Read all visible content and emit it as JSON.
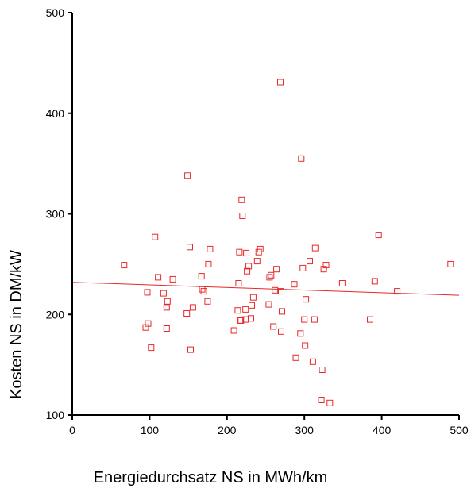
{
  "chart_data": {
    "type": "scatter",
    "title": "",
    "xlabel": "Energiedurchsatz NS in MWh/km",
    "ylabel": "Kosten NS in DM/kW",
    "xlim": [
      0,
      500
    ],
    "ylim": [
      100,
      500
    ],
    "xticks": [
      "0",
      "100",
      "200",
      "300",
      "400",
      "500"
    ],
    "yticks": [
      "100",
      "200",
      "300",
      "400",
      "500"
    ],
    "grid": false,
    "legend": "none",
    "marker": "open-square",
    "colors": {
      "points": "#e8282a",
      "fit_line": "#e8282a",
      "axes": "#000000",
      "background": "#ffffff"
    },
    "fit_line": {
      "x": [
        0,
        500
      ],
      "y": [
        232,
        219
      ]
    },
    "points": [
      {
        "x": 67,
        "y": 249
      },
      {
        "x": 95,
        "y": 187
      },
      {
        "x": 97,
        "y": 222
      },
      {
        "x": 98,
        "y": 191
      },
      {
        "x": 102,
        "y": 167
      },
      {
        "x": 107,
        "y": 277
      },
      {
        "x": 111,
        "y": 237
      },
      {
        "x": 118,
        "y": 221
      },
      {
        "x": 122,
        "y": 186
      },
      {
        "x": 122,
        "y": 207
      },
      {
        "x": 123,
        "y": 213
      },
      {
        "x": 130,
        "y": 235
      },
      {
        "x": 148,
        "y": 201
      },
      {
        "x": 149,
        "y": 338
      },
      {
        "x": 152,
        "y": 267
      },
      {
        "x": 153,
        "y": 165
      },
      {
        "x": 156,
        "y": 207
      },
      {
        "x": 167,
        "y": 238
      },
      {
        "x": 168,
        "y": 225
      },
      {
        "x": 170,
        "y": 223
      },
      {
        "x": 175,
        "y": 213
      },
      {
        "x": 176,
        "y": 250
      },
      {
        "x": 178,
        "y": 265
      },
      {
        "x": 209,
        "y": 184
      },
      {
        "x": 214,
        "y": 204
      },
      {
        "x": 215,
        "y": 231
      },
      {
        "x": 216,
        "y": 262
      },
      {
        "x": 217,
        "y": 194
      },
      {
        "x": 218,
        "y": 194
      },
      {
        "x": 219,
        "y": 314
      },
      {
        "x": 220,
        "y": 298
      },
      {
        "x": 224,
        "y": 195
      },
      {
        "x": 224,
        "y": 205
      },
      {
        "x": 225,
        "y": 261
      },
      {
        "x": 226,
        "y": 243
      },
      {
        "x": 228,
        "y": 248
      },
      {
        "x": 231,
        "y": 196
      },
      {
        "x": 232,
        "y": 209
      },
      {
        "x": 234,
        "y": 217
      },
      {
        "x": 239,
        "y": 253
      },
      {
        "x": 241,
        "y": 262
      },
      {
        "x": 243,
        "y": 265
      },
      {
        "x": 254,
        "y": 210
      },
      {
        "x": 255,
        "y": 237
      },
      {
        "x": 257,
        "y": 239
      },
      {
        "x": 260,
        "y": 188
      },
      {
        "x": 262,
        "y": 224
      },
      {
        "x": 264,
        "y": 245
      },
      {
        "x": 269,
        "y": 431
      },
      {
        "x": 270,
        "y": 223
      },
      {
        "x": 270,
        "y": 183
      },
      {
        "x": 271,
        "y": 203
      },
      {
        "x": 287,
        "y": 230
      },
      {
        "x": 289,
        "y": 157
      },
      {
        "x": 295,
        "y": 181
      },
      {
        "x": 296,
        "y": 355
      },
      {
        "x": 298,
        "y": 246
      },
      {
        "x": 300,
        "y": 195
      },
      {
        "x": 301,
        "y": 169
      },
      {
        "x": 302,
        "y": 215
      },
      {
        "x": 307,
        "y": 253
      },
      {
        "x": 311,
        "y": 153
      },
      {
        "x": 313,
        "y": 195
      },
      {
        "x": 314,
        "y": 266
      },
      {
        "x": 322,
        "y": 115
      },
      {
        "x": 323,
        "y": 145
      },
      {
        "x": 325,
        "y": 245
      },
      {
        "x": 328,
        "y": 249
      },
      {
        "x": 333,
        "y": 112
      },
      {
        "x": 349,
        "y": 231
      },
      {
        "x": 385,
        "y": 195
      },
      {
        "x": 391,
        "y": 233
      },
      {
        "x": 396,
        "y": 279
      },
      {
        "x": 420,
        "y": 223
      },
      {
        "x": 489,
        "y": 250
      }
    ]
  }
}
